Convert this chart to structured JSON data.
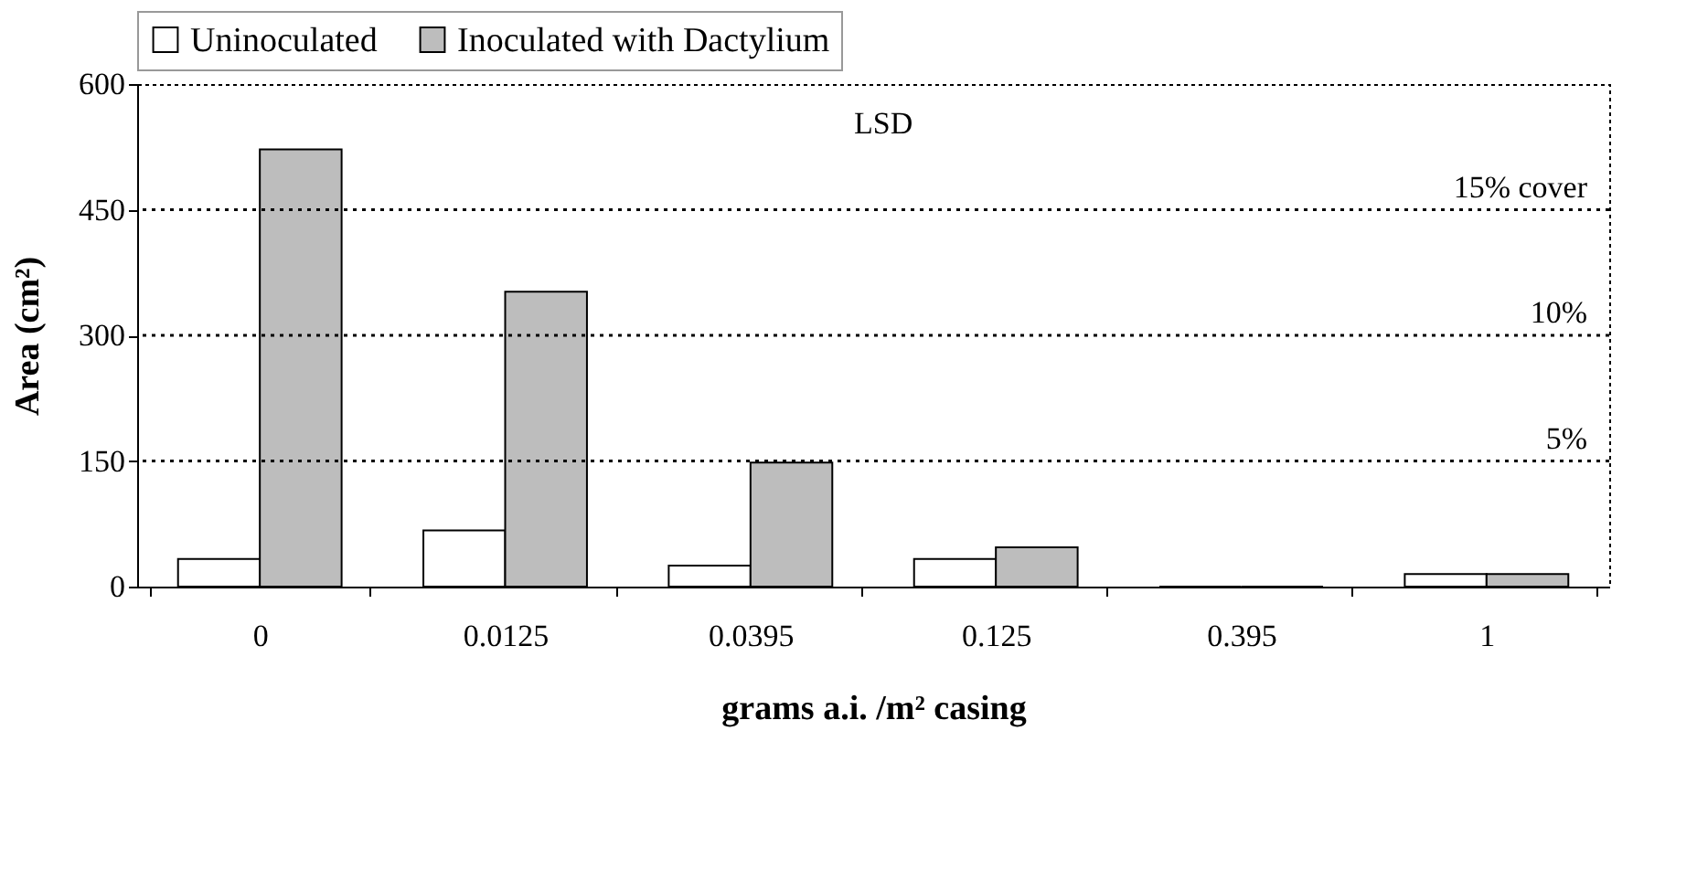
{
  "chart_data": {
    "type": "bar",
    "xlabel": "grams a.i. /m² casing",
    "ylabel": "Area (cm²)",
    "categories": [
      "0",
      "0.0125",
      "0.0395",
      "0.125",
      "0.395",
      "1"
    ],
    "series": [
      {
        "name": "Uninoculated",
        "color": "#ffffff",
        "values": [
          33,
          67,
          25,
          33,
          0,
          15
        ]
      },
      {
        "name": "Inoculated with Dactylium",
        "color": "#bdbdbd",
        "values": [
          522,
          352,
          148,
          47,
          0,
          15
        ]
      }
    ],
    "ylim": [
      0,
      600
    ],
    "yticks": [
      0,
      150,
      300,
      450,
      600
    ],
    "grid": false,
    "legend": "top",
    "ref_lines": [
      {
        "axis": "y",
        "value": 450,
        "line_style": "dotted"
      },
      {
        "axis": "y",
        "value": 300,
        "line_style": "dotted"
      },
      {
        "axis": "y",
        "value": 150,
        "line_style": "dotted"
      }
    ],
    "annotations": [
      "LSD",
      {
        "text": "15% cover",
        "y": 450
      },
      {
        "text": "10%",
        "y": 300
      },
      {
        "text": "5%",
        "y": 150
      }
    ]
  }
}
